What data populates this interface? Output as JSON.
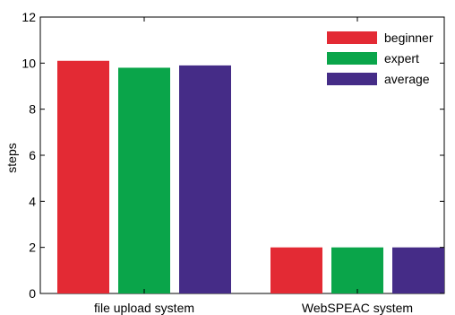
{
  "chart_data": {
    "type": "bar",
    "title": "",
    "xlabel": "",
    "ylabel": "steps",
    "ylim": [
      0,
      12
    ],
    "yticks": [
      0,
      2,
      4,
      6,
      8,
      10,
      12
    ],
    "categories": [
      "file upload system",
      "WebSPEAC system"
    ],
    "series": [
      {
        "name": "beginner",
        "color": "#e32a34",
        "values": [
          10.1,
          2.0
        ]
      },
      {
        "name": "expert",
        "color": "#0aa54a",
        "values": [
          9.8,
          2.0
        ]
      },
      {
        "name": "average",
        "color": "#452c87",
        "values": [
          9.9,
          2.0
        ]
      }
    ],
    "legend_position": "top-right",
    "grid": false
  }
}
